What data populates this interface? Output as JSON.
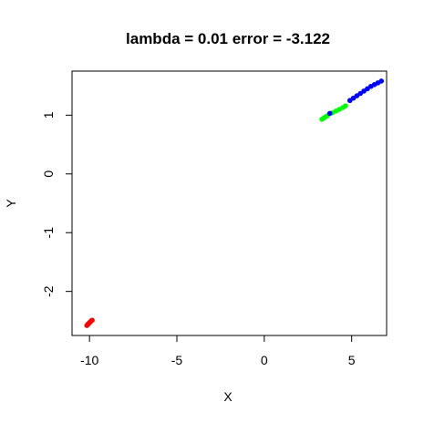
{
  "chart_data": {
    "type": "scatter",
    "title": "lambda = 0.01 error = -3.122",
    "xlabel": "X",
    "ylabel": "Y",
    "xlim": [
      -11,
      7
    ],
    "ylim": [
      -2.75,
      1.75
    ],
    "xticks": [
      -10,
      -5,
      0,
      5
    ],
    "xtick_labels": [
      "-10",
      "-5",
      "0",
      "5"
    ],
    "yticks": [
      -2,
      -1,
      0,
      1
    ],
    "ytick_labels": [
      "-2",
      "-1",
      "0",
      "1"
    ],
    "grid": false,
    "legend": "none",
    "series": [
      {
        "color": "#ff0000",
        "points": [
          [
            -10.15,
            -2.58
          ],
          [
            -10.1,
            -2.56
          ],
          [
            -10.05,
            -2.55
          ],
          [
            -10.0,
            -2.53
          ],
          [
            -9.95,
            -2.52
          ],
          [
            -9.9,
            -2.5
          ],
          [
            -9.85,
            -2.49
          ]
        ]
      },
      {
        "color": "#00ff00",
        "points": [
          [
            3.3,
            0.93
          ],
          [
            3.4,
            0.95
          ],
          [
            3.5,
            0.97
          ],
          [
            3.6,
            0.99
          ],
          [
            3.9,
            1.04
          ],
          [
            4.1,
            1.07
          ],
          [
            4.3,
            1.1
          ],
          [
            4.5,
            1.13
          ],
          [
            4.65,
            1.16
          ]
        ]
      },
      {
        "color": "#0000ff",
        "points": [
          [
            3.75,
            1.03
          ],
          [
            4.9,
            1.25
          ],
          [
            5.1,
            1.29
          ],
          [
            5.3,
            1.33
          ],
          [
            5.5,
            1.37
          ],
          [
            5.7,
            1.41
          ],
          [
            5.9,
            1.45
          ],
          [
            6.1,
            1.49
          ],
          [
            6.3,
            1.52
          ],
          [
            6.5,
            1.55
          ],
          [
            6.7,
            1.58
          ]
        ]
      }
    ]
  }
}
